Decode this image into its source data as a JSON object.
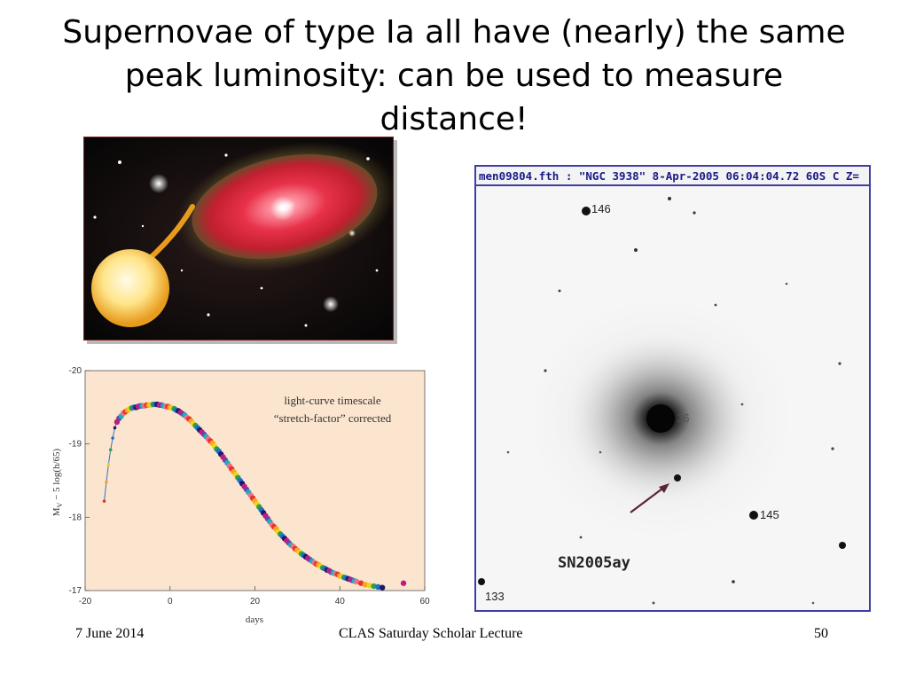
{
  "slide": {
    "title": "Supernovae of type Ia all have (nearly)  the same peak luminosity: can be used to measure distance!"
  },
  "observation": {
    "header": "men09804.fth  : \"NGC 3938\"  8-Apr-2005 06:04:04.72 60S C Z=",
    "labels": {
      "star_146": "146",
      "star_145": "145",
      "star_133": "133",
      "star_36": "36",
      "supernova": "SN2005ay"
    }
  },
  "chart_data": {
    "type": "scatter",
    "xlabel": "days",
    "ylabel": "M_V − 5 log(h/65)",
    "ylabel_main": "M",
    "ylabel_sub": "V",
    "ylabel_rest": " − 5 log(h/65)",
    "annotation_line1": "light-curve timescale",
    "annotation_line2": "“stretch-factor” corrected",
    "xlim": [
      -20,
      60
    ],
    "ylim": [
      -17,
      -20
    ],
    "x_ticks": [
      "-20",
      "0",
      "20",
      "40",
      "60"
    ],
    "y_ticks": [
      "-20",
      "-19",
      "-18",
      "-17"
    ],
    "colors": [
      "#e8322c",
      "#f7a51e",
      "#f0d520",
      "#2f9e47",
      "#1f6fcc",
      "#1a1a6a",
      "#c2187f",
      "#7a3aa8",
      "#19b1b8",
      "#f26d8c"
    ],
    "x": [
      -15.5,
      -15,
      -14.5,
      -14,
      -13.5,
      -13,
      -12.5,
      -12,
      -11.5,
      -11,
      -10.5,
      -10,
      -9.5,
      -9,
      -8.5,
      -8,
      -7.5,
      -7,
      -6.5,
      -6,
      -5.5,
      -5,
      -4.5,
      -4,
      -3.5,
      -3,
      -2.5,
      -2,
      -1.5,
      -1,
      -0.5,
      0,
      0.5,
      1,
      1.5,
      2,
      2.5,
      3,
      3.5,
      4,
      4.5,
      5,
      5.5,
      6,
      6.5,
      7,
      7.5,
      8,
      8.5,
      9,
      9.5,
      10,
      10.5,
      11,
      11.5,
      12,
      12.5,
      13,
      13.5,
      14,
      14.5,
      15,
      15.5,
      16,
      16.5,
      17,
      17.5,
      18,
      18.5,
      19,
      19.5,
      20,
      20.5,
      21,
      21.5,
      22,
      22.5,
      23,
      23.5,
      24,
      24.5,
      25,
      25.5,
      26,
      26.5,
      27,
      27.5,
      28,
      28.5,
      29,
      29.5,
      30,
      30.5,
      31,
      31.5,
      32,
      32.5,
      33,
      33.5,
      34,
      34.5,
      35,
      35.5,
      36,
      36.5,
      37,
      37.5,
      38,
      38.5,
      39,
      39.5,
      40,
      40.5,
      41,
      41.5,
      42,
      42.5,
      43,
      43.5,
      44,
      45,
      46,
      47,
      48,
      49,
      50,
      55
    ],
    "y": [
      -18.22,
      -18.48,
      -18.72,
      -18.92,
      -19.08,
      -19.22,
      -19.3,
      -19.35,
      -19.38,
      -19.42,
      -19.44,
      -19.46,
      -19.48,
      -19.49,
      -19.5,
      -19.5,
      -19.51,
      -19.52,
      -19.52,
      -19.52,
      -19.53,
      -19.53,
      -19.53,
      -19.54,
      -19.54,
      -19.54,
      -19.53,
      -19.53,
      -19.52,
      -19.51,
      -19.51,
      -19.5,
      -19.49,
      -19.48,
      -19.46,
      -19.45,
      -19.43,
      -19.41,
      -19.39,
      -19.36,
      -19.34,
      -19.31,
      -19.28,
      -19.25,
      -19.22,
      -19.19,
      -19.16,
      -19.13,
      -19.1,
      -19.07,
      -19.04,
      -19.01,
      -18.97,
      -18.93,
      -18.9,
      -18.86,
      -18.82,
      -18.78,
      -18.74,
      -18.7,
      -18.66,
      -18.62,
      -18.58,
      -18.54,
      -18.5,
      -18.46,
      -18.42,
      -18.38,
      -18.34,
      -18.3,
      -18.26,
      -18.22,
      -18.18,
      -18.14,
      -18.1,
      -18.06,
      -18.02,
      -17.98,
      -17.94,
      -17.9,
      -17.87,
      -17.84,
      -17.8,
      -17.77,
      -17.74,
      -17.71,
      -17.68,
      -17.65,
      -17.62,
      -17.6,
      -17.57,
      -17.55,
      -17.52,
      -17.5,
      -17.48,
      -17.46,
      -17.44,
      -17.42,
      -17.4,
      -17.38,
      -17.36,
      -17.35,
      -17.33,
      -17.31,
      -17.3,
      -17.28,
      -17.27,
      -17.25,
      -17.24,
      -17.23,
      -17.22,
      -17.2,
      -17.19,
      -17.18,
      -17.17,
      -17.16,
      -17.15,
      -17.14,
      -17.13,
      -17.12,
      -17.1,
      -17.08,
      -17.07,
      -17.06,
      -17.05,
      -17.04,
      -17.1
    ]
  },
  "footer": {
    "date": "7 June 2014",
    "center": "CLAS Saturday Scholar Lecture",
    "page": "50"
  }
}
